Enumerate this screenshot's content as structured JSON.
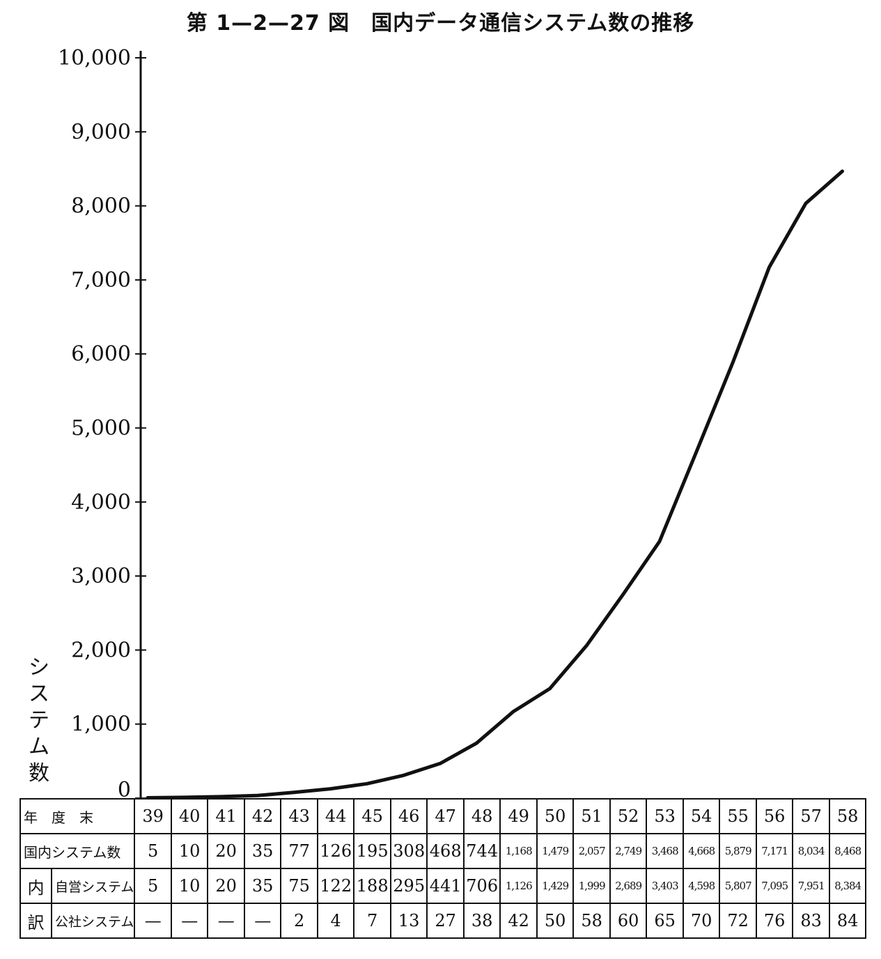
{
  "chart_data": {
    "type": "line",
    "title": "第 1—2—27 図　国内データ通信システム数の推移",
    "ylabel": "システム数",
    "ylim": [
      0,
      10000
    ],
    "yticks": [
      0,
      1000,
      2000,
      3000,
      4000,
      5000,
      6000,
      7000,
      8000,
      9000,
      10000
    ],
    "ytick_labels": [
      "0",
      "1,000",
      "2,000",
      "3,000",
      "4,000",
      "5,000",
      "6,000",
      "7,000",
      "8,000",
      "9,000",
      "10,000"
    ],
    "x": [
      "39",
      "40",
      "41",
      "42",
      "43",
      "44",
      "45",
      "46",
      "47",
      "48",
      "49",
      "50",
      "51",
      "52",
      "53",
      "54",
      "55",
      "56",
      "57",
      "58"
    ],
    "series": [
      {
        "values": [
          5,
          10,
          20,
          35,
          77,
          126,
          195,
          308,
          468,
          744,
          1168,
          1479,
          2057,
          2749,
          3468,
          4668,
          5879,
          7171,
          8034,
          8468
        ]
      }
    ],
    "grid": false,
    "line_color": "#111111"
  },
  "table": {
    "year_header": "年　度　末",
    "total_header": "国内システム数",
    "breakdown_header_top": "内",
    "breakdown_header_bottom": "訳",
    "private_header": "自営システム",
    "public_header": "公社システム",
    "total": [
      "5",
      "10",
      "20",
      "35",
      "77",
      "126",
      "195",
      "308",
      "468",
      "744",
      "1,168",
      "1,479",
      "2,057",
      "2,749",
      "3,468",
      "4,668",
      "5,879",
      "7,171",
      "8,034",
      "8,468"
    ],
    "private": [
      "5",
      "10",
      "20",
      "35",
      "75",
      "122",
      "188",
      "295",
      "441",
      "706",
      "1,126",
      "1,429",
      "1,999",
      "2,689",
      "3,403",
      "4,598",
      "5,807",
      "7,095",
      "7,951",
      "8,384"
    ],
    "public": [
      "—",
      "—",
      "—",
      "—",
      "2",
      "4",
      "7",
      "13",
      "27",
      "38",
      "42",
      "50",
      "58",
      "60",
      "65",
      "70",
      "72",
      "76",
      "83",
      "84"
    ]
  }
}
